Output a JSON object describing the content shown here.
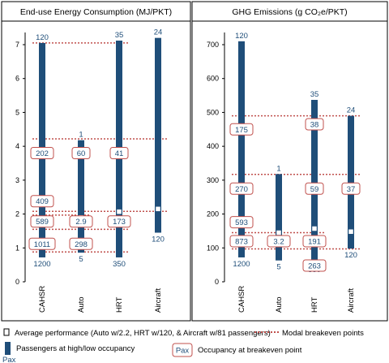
{
  "chart_data": [
    {
      "type": "floating-bar",
      "title": "End-use Energy Consumption (MJ/PKT)",
      "ylim": [
        0,
        7.5
      ],
      "yticks": [
        "0",
        "1",
        "2",
        "3",
        "4",
        "5",
        "6",
        "7"
      ],
      "categories": [
        "CAHSR",
        "Auto",
        "HRT",
        "Aircraft"
      ],
      "bars": [
        {
          "category": "CAHSR",
          "low": 0.72,
          "high": 7.05,
          "top_pax": "120",
          "bottom_pax": "1200",
          "avg": null
        },
        {
          "category": "Auto",
          "low": 0.86,
          "high": 4.18,
          "top_pax": "1",
          "bottom_pax": "5",
          "avg": 1.9
        },
        {
          "category": "HRT",
          "low": 0.72,
          "high": 7.12,
          "top_pax": "35",
          "bottom_pax": "350",
          "avg": 2.07
        },
        {
          "category": "Aircraft",
          "low": 1.45,
          "high": 7.2,
          "top_pax": "24",
          "bottom_pax": "120",
          "avg": 2.15
        }
      ],
      "breakevens": [
        {
          "y": 7.05,
          "from": 0,
          "to": 2
        },
        {
          "y": 4.22,
          "from": 0,
          "to": 3
        },
        {
          "y": 2.08,
          "from": 0,
          "to": 3
        },
        {
          "y": 1.97,
          "from": 0,
          "to": 1
        },
        {
          "y": 1.55,
          "from": 0,
          "to": 2
        },
        {
          "y": 0.88,
          "from": 0,
          "to": 2
        }
      ],
      "occupancy_labels": [
        {
          "text": "202",
          "bar": 0,
          "y": 3.8
        },
        {
          "text": "60",
          "bar": 1,
          "y": 3.8
        },
        {
          "text": "41",
          "bar": 2,
          "y": 3.8
        },
        {
          "text": "409",
          "bar": 0,
          "y": 2.38
        },
        {
          "text": "589",
          "bar": 0,
          "y": 1.78
        },
        {
          "text": "2.9",
          "bar": 1,
          "y": 1.78
        },
        {
          "text": "173",
          "bar": 2,
          "y": 1.78
        },
        {
          "text": "1011",
          "bar": 0,
          "y": 1.12
        },
        {
          "text": "298",
          "bar": 1,
          "y": 1.12
        }
      ]
    },
    {
      "type": "floating-bar",
      "title": "GHG Emissions (g CO₂e/PKT)",
      "ylim": [
        0,
        750
      ],
      "yticks": [
        "0",
        "100",
        "200",
        "300",
        "400",
        "500",
        "600",
        "700"
      ],
      "categories": [
        "CAHSR",
        "Auto",
        "HRT",
        "Aircraft"
      ],
      "bars": [
        {
          "category": "CAHSR",
          "low": 72,
          "high": 710,
          "top_pax": "120",
          "bottom_pax": "1200",
          "avg": null
        },
        {
          "category": "Auto",
          "low": 63,
          "high": 318,
          "top_pax": "1",
          "bottom_pax": "5",
          "avg": 145
        },
        {
          "category": "HRT",
          "low": 55,
          "high": 537,
          "top_pax": "35",
          "bottom_pax": "350",
          "avg": 157
        },
        {
          "category": "Aircraft",
          "low": 98,
          "high": 490,
          "top_pax": "24",
          "bottom_pax": "120",
          "avg": 148
        }
      ],
      "breakevens": [
        {
          "y": 490,
          "from": 0,
          "to": 3
        },
        {
          "y": 317,
          "from": 0,
          "to": 3
        },
        {
          "y": 145,
          "from": 0,
          "to": 2
        },
        {
          "y": 97,
          "from": 0,
          "to": 3
        }
      ],
      "occupancy_labels": [
        {
          "text": "175",
          "bar": 0,
          "y": 450
        },
        {
          "text": "38",
          "bar": 2,
          "y": 465
        },
        {
          "text": "270",
          "bar": 0,
          "y": 275
        },
        {
          "text": "59",
          "bar": 2,
          "y": 275
        },
        {
          "text": "37",
          "bar": 3,
          "y": 275
        },
        {
          "text": "593",
          "bar": 0,
          "y": 176
        },
        {
          "text": "873",
          "bar": 0,
          "y": 120
        },
        {
          "text": "3.2",
          "bar": 1,
          "y": 120
        },
        {
          "text": "191",
          "bar": 2,
          "y": 120
        },
        {
          "text": "263",
          "bar": 2,
          "y": 48
        }
      ]
    }
  ],
  "legend": {
    "avg_label": "Average performance (Auto w/2.2, HRT w/120, & Aircraft w/81 passengers)",
    "breakeven_label": "Modal breakeven points",
    "bar_label": "Passengers at high/low occupancy",
    "pax_small": "Pax",
    "pax_box": "Pax",
    "occupancy_label": "Occupancy at breakeven point"
  },
  "colors": {
    "bar": "#1F4E79",
    "bar_text": "#1F4E79",
    "breakeven": "#C0504D",
    "box_border": "#C0504D"
  }
}
